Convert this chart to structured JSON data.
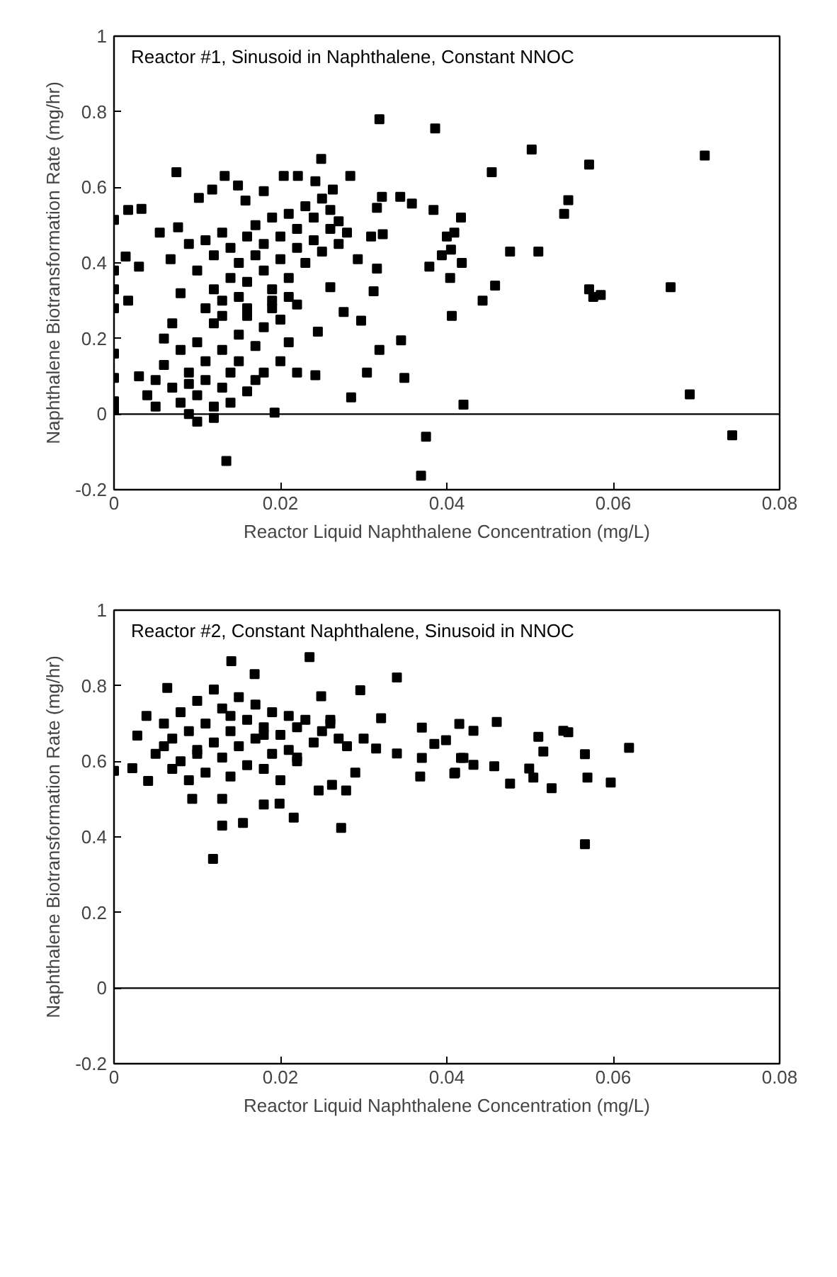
{
  "chart_data": [
    {
      "type": "scatter",
      "title": "Reactor #1, Sinusoid in Naphthalene, Constant NNOC",
      "xlabel": "Reactor Liquid Naphthalene Concentration (mg/L)",
      "ylabel": "Naphthalene Biotransformation Rate (mg/hr)",
      "xlim": [
        0,
        0.08
      ],
      "ylim": [
        -0.2,
        1
      ],
      "xticks": [
        0,
        0.02,
        0.04,
        0.06,
        0.08
      ],
      "yticks": [
        -0.2,
        0,
        0.2,
        0.4,
        0.6,
        0.8,
        1
      ],
      "grid": false,
      "marker": "square",
      "ref_lines": [
        {
          "axis": "y",
          "value": 0,
          "color": "#000000"
        }
      ],
      "series": [
        {
          "color": "#000000",
          "x": [
            0.0386,
            0.0502,
            0.0571,
            0.071,
            0.0454,
            0.0546,
            0.0541,
            0.0358,
            0.0384,
            0.0417,
            0.0409,
            0.04,
            0.0405,
            0.0394,
            0.0418,
            0.0379,
            0.0404,
            0.0476,
            0.051,
            0.0458,
            0.0443,
            0.0571,
            0.0576,
            0.0585,
            0.0669,
            0.0406,
            0.042,
            0.0692,
            0.0375,
            0.0369,
            0.0743,
            0.0319,
            0.0249,
            0.0075,
            0.0284,
            0.0322,
            0.0344,
            0.0316,
            0.0309,
            0.0323,
            0.0293,
            0.0316,
            0.0312,
            0.0276,
            0.0297,
            0.0345,
            0.0319,
            0.0304,
            0.0349,
            0.0285,
            0.0242,
            0.022,
            0.0193,
            0.0245,
            0.026,
            0.0135,
            0.0017,
            0.0033,
            0,
            0,
            0,
            0,
            0,
            0,
            0,
            0,
            0.0014,
            0.003,
            0.0017,
            0.0055,
            0.0077,
            0.0068,
            0.0102,
            0.0118,
            0.0133,
            0.0149,
            0.0158,
            0.018,
            0.0204,
            0.0221,
            0.0242,
            0.0263,
            0.003,
            0.004,
            0.005,
            0.006,
            0.007,
            0.008,
            0.008,
            0.009,
            0.009,
            0.01,
            0.01,
            0.01,
            0.011,
            0.011,
            0.012,
            0.012,
            0.013,
            0.013,
            0.014,
            0.014,
            0.015,
            0.015,
            0.016,
            0.016,
            0.017,
            0.018,
            0.018,
            0.019,
            0.02,
            0.021,
            0.022,
            0.006,
            0.007,
            0.012,
            0.009,
            0.005,
            0.013,
            0.017,
            0.02,
            0.011,
            0.008,
            0.009,
            0.01,
            0.011,
            0.012,
            0.012,
            0.013,
            0.014,
            0.014,
            0.015,
            0.015,
            0.016,
            0.016,
            0.017,
            0.017,
            0.018,
            0.018,
            0.019,
            0.019,
            0.02,
            0.02,
            0.021,
            0.021,
            0.022,
            0.022,
            0.023,
            0.023,
            0.024,
            0.024,
            0.025,
            0.025,
            0.026,
            0.026,
            0.027,
            0.027,
            0.028,
            0.013,
            0.016,
            0.019,
            0.021
          ],
          "values": [
            0.756,
            0.7,
            0.66,
            0.684,
            0.64,
            0.566,
            0.53,
            0.557,
            0.54,
            0.52,
            0.48,
            0.47,
            0.435,
            0.42,
            0.4,
            0.39,
            0.36,
            0.43,
            0.43,
            0.34,
            0.3,
            0.33,
            0.31,
            0.315,
            0.336,
            0.26,
            0.025,
            0.052,
            -0.06,
            -0.163,
            -0.056,
            0.78,
            0.675,
            0.64,
            0.63,
            0.575,
            0.575,
            0.546,
            0.47,
            0.476,
            0.41,
            0.385,
            0.325,
            0.27,
            0.247,
            0.195,
            0.17,
            0.11,
            0.096,
            0.044,
            0.103,
            0.11,
            0.004,
            0.218,
            0.336,
            -0.124,
            0.54,
            0.543,
            0.514,
            0.38,
            0.33,
            0.28,
            0.16,
            0.096,
            0.034,
            0.011,
            0.417,
            0.39,
            0.3,
            0.48,
            0.494,
            0.41,
            0.572,
            0.594,
            0.63,
            0.605,
            0.565,
            0.59,
            0.63,
            0.63,
            0.616,
            0.594,
            0.1,
            0.05,
            0.02,
            0.13,
            0.07,
            0.03,
            0.17,
            0.0,
            0.11,
            0.05,
            -0.02,
            0.19,
            0.09,
            0.14,
            0.02,
            0.24,
            0.07,
            0.17,
            0.11,
            0.03,
            0.21,
            0.14,
            0.26,
            0.06,
            0.18,
            0.23,
            0.11,
            0.28,
            0.25,
            0.19,
            0.29,
            0.2,
            0.24,
            -0.01,
            0.08,
            0.09,
            0.26,
            0.09,
            0.14,
            0.28,
            0.32,
            0.45,
            0.38,
            0.46,
            0.33,
            0.42,
            0.48,
            0.36,
            0.44,
            0.4,
            0.31,
            0.47,
            0.35,
            0.42,
            0.5,
            0.38,
            0.45,
            0.33,
            0.52,
            0.41,
            0.47,
            0.36,
            0.53,
            0.44,
            0.49,
            0.4,
            0.55,
            0.46,
            0.52,
            0.43,
            0.57,
            0.49,
            0.54,
            0.45,
            0.51,
            0.48,
            0.3,
            0.28,
            0.3,
            0.31
          ]
        }
      ]
    },
    {
      "type": "scatter",
      "title": "Reactor #2, Constant Naphthalene, Sinusoid in NNOC",
      "xlabel": "Reactor Liquid Naphthalene Concentration (mg/L)",
      "ylabel": "Naphthalene Biotransformation Rate (mg/hr)",
      "xlim": [
        0,
        0.08
      ],
      "ylim": [
        -0.2,
        1
      ],
      "xticks": [
        0,
        0.02,
        0.04,
        0.06,
        0.08
      ],
      "yticks": [
        -0.2,
        0,
        0.2,
        0.4,
        0.6,
        0.8,
        1
      ],
      "grid": false,
      "marker": "square",
      "ref_lines": [
        {
          "axis": "y",
          "value": 0,
          "color": "#000000"
        }
      ],
      "series": [
        {
          "color": "#000000",
          "x": [
            0.0235,
            0.0141,
            0.0169,
            0.034,
            0.0064,
            0.0296,
            0.0249,
            0.0039,
            0.0028,
            0,
            0.0022,
            0.0041,
            0.0094,
            0.013,
            0.013,
            0.0155,
            0.0119,
            0.0273,
            0.0216,
            0.018,
            0.0199,
            0.0246,
            0.0262,
            0.0279,
            0.029,
            0.0321,
            0.037,
            0.0415,
            0.0409,
            0.0368,
            0.0417,
            0.034,
            0.0315,
            0.046,
            0.0432,
            0.0399,
            0.0385,
            0.037,
            0.042,
            0.041,
            0.0432,
            0.0457,
            0.0476,
            0.0499,
            0.0504,
            0.0526,
            0.051,
            0.0516,
            0.054,
            0.0546,
            0.0566,
            0.0569,
            0.0597,
            0.0619,
            0.0566,
            0.005,
            0.006,
            0.007,
            0.007,
            0.008,
            0.008,
            0.009,
            0.009,
            0.01,
            0.01,
            0.011,
            0.011,
            0.012,
            0.012,
            0.013,
            0.013,
            0.014,
            0.014,
            0.015,
            0.015,
            0.016,
            0.016,
            0.017,
            0.017,
            0.018,
            0.018,
            0.019,
            0.019,
            0.02,
            0.02,
            0.021,
            0.021,
            0.022,
            0.022,
            0.023,
            0.024,
            0.025,
            0.026,
            0.027,
            0.028,
            0.006,
            0.01,
            0.014,
            0.018,
            0.022,
            0.026,
            0.03
          ],
          "values": [
            0.876,
            0.865,
            0.831,
            0.822,
            0.794,
            0.788,
            0.772,
            0.72,
            0.668,
            0.575,
            0.582,
            0.548,
            0.501,
            0.501,
            0.43,
            0.437,
            0.342,
            0.424,
            0.451,
            0.486,
            0.488,
            0.523,
            0.538,
            0.523,
            0.57,
            0.714,
            0.689,
            0.699,
            0.568,
            0.56,
            0.609,
            0.621,
            0.634,
            0.704,
            0.681,
            0.656,
            0.646,
            0.609,
            0.609,
            0.57,
            0.591,
            0.587,
            0.541,
            0.581,
            0.557,
            0.529,
            0.665,
            0.626,
            0.681,
            0.677,
            0.619,
            0.557,
            0.544,
            0.636,
            0.381,
            0.62,
            0.7,
            0.58,
            0.66,
            0.73,
            0.6,
            0.68,
            0.55,
            0.76,
            0.63,
            0.7,
            0.57,
            0.79,
            0.65,
            0.61,
            0.74,
            0.68,
            0.56,
            0.77,
            0.64,
            0.71,
            0.59,
            0.75,
            0.66,
            0.69,
            0.58,
            0.73,
            0.62,
            0.67,
            0.55,
            0.72,
            0.63,
            0.69,
            0.6,
            0.71,
            0.65,
            0.68,
            0.7,
            0.66,
            0.64,
            0.64,
            0.62,
            0.72,
            0.67,
            0.61,
            0.71,
            0.66
          ]
        }
      ]
    }
  ]
}
